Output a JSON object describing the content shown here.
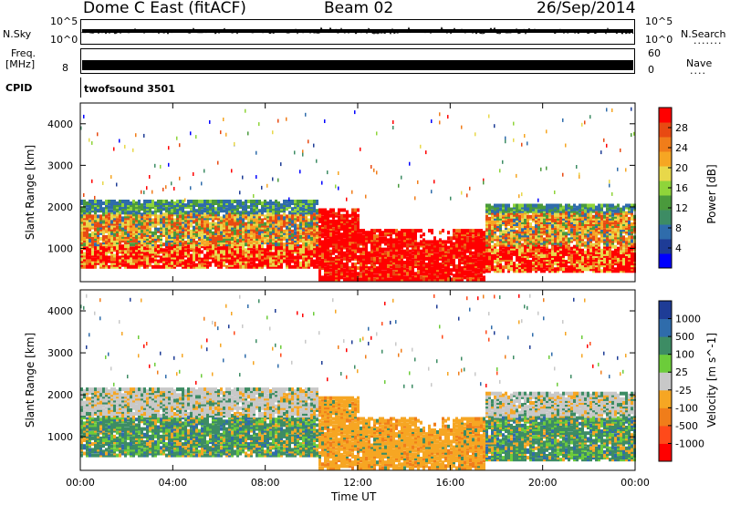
{
  "header": {
    "station": "Dome C East (fitACF)",
    "beam": "Beam 02",
    "date": "26/Sep/2014"
  },
  "noise_panel": {
    "left_label": "N.Sky",
    "left_ticks": [
      "10^5",
      "10^0"
    ],
    "right_ticks": [
      "10^5",
      "10^0"
    ],
    "right_label": "N.Search"
  },
  "freq_panel": {
    "label_line1": "Freq.",
    "label_line2": "[MHz]",
    "left_tick": "8",
    "right_ticks": [
      "60",
      "0"
    ],
    "right_label": "Nave"
  },
  "cpid_panel": {
    "label": "CPID",
    "text": "twofsound 3501"
  },
  "chart_data": [
    {
      "type": "heatmap",
      "name": "power",
      "ylabel": "Slant Range [km]",
      "xlabel": "Time UT",
      "x_ticks": [
        "00:00",
        "04:00",
        "08:00",
        "12:00",
        "16:00",
        "20:00",
        "00:00"
      ],
      "y_ticks": [
        1000,
        2000,
        3000,
        4000
      ],
      "ylim": [
        200,
        4500
      ],
      "colorbar": {
        "label": "Power [dB]",
        "ticks": [
          "28",
          "24",
          "20",
          "16",
          "12",
          "8",
          "4"
        ],
        "colors": [
          "#0000ff",
          "#1e3c96",
          "#2f6cab",
          "#3d8c64",
          "#4a9a3c",
          "#8fd43a",
          "#e8d84a",
          "#f6a623",
          "#f07d1a",
          "#e84a12",
          "#ff0000"
        ]
      },
      "bands": [
        {
          "t0": 0.0,
          "t1": 10.3,
          "r0": 600,
          "r1": 2200,
          "level": "mixed"
        },
        {
          "t0": 10.3,
          "t1": 17.5,
          "r0": 300,
          "r1": 1500,
          "level": "high"
        },
        {
          "t0": 17.5,
          "t1": 24.0,
          "r0": 500,
          "r1": 2100,
          "level": "mixed"
        }
      ]
    },
    {
      "type": "heatmap",
      "name": "velocity",
      "ylabel": "Slant Range [km]",
      "xlabel": "Time UT",
      "x_ticks": [
        "00:00",
        "04:00",
        "08:00",
        "12:00",
        "16:00",
        "20:00",
        "00:00"
      ],
      "y_ticks": [
        1000,
        2000,
        3000,
        4000
      ],
      "ylim": [
        200,
        4500
      ],
      "colorbar": {
        "label": "Velocity [m s^-1]",
        "ticks": [
          "1000",
          "500",
          "100",
          "25",
          "-25",
          "-100",
          "-500",
          "-1000"
        ],
        "colors": [
          "#ff0000",
          "#ff4a1a",
          "#f07d1a",
          "#f6a623",
          "#c8c8c8",
          "#6ccc3a",
          "#3d8c64",
          "#2f6cab",
          "#1e3c96"
        ]
      }
    }
  ]
}
